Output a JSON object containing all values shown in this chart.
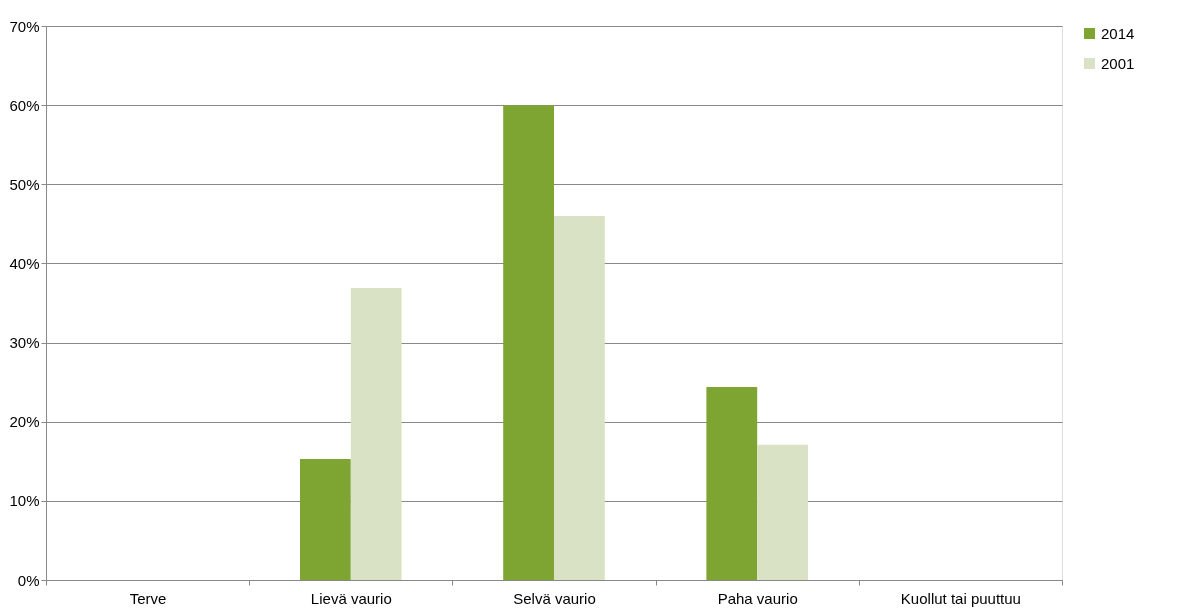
{
  "chart_data": {
    "type": "bar",
    "categories": [
      "Terve",
      "Lievä vaurio",
      "Selvä vaurio",
      "Paha  vaurio",
      "Kuollut  tai puuttuu"
    ],
    "series": [
      {
        "name": "2014",
        "color": "#7ea432",
        "values": [
          0,
          15.3,
          60,
          24.4,
          0
        ]
      },
      {
        "name": "2001",
        "color": "#d9e2c4",
        "values": [
          0,
          36.9,
          46,
          17.1,
          0
        ]
      }
    ],
    "ylim": [
      0,
      70
    ],
    "yticks": [
      {
        "value": 0,
        "label": "0%"
      },
      {
        "value": 10,
        "label": "10%"
      },
      {
        "value": 20,
        "label": "20%"
      },
      {
        "value": 30,
        "label": "30%"
      },
      {
        "value": 40,
        "label": "40%"
      },
      {
        "value": 50,
        "label": "50%"
      },
      {
        "value": 60,
        "label": "60%"
      },
      {
        "value": 70,
        "label": "70%"
      }
    ],
    "grid": "y",
    "legend": "right"
  }
}
